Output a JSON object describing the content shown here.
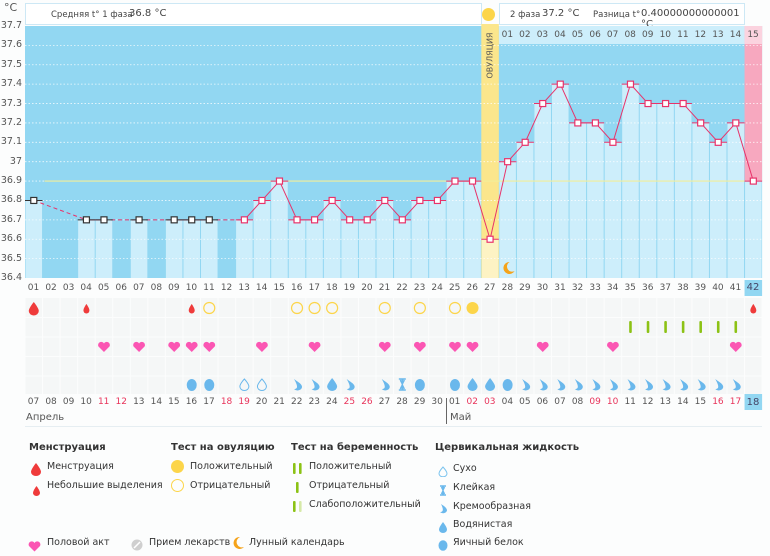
{
  "header": {
    "unit": "°C",
    "phase1_label": "Средняя t° 1 фаза",
    "phase1_value": "36.8 °C",
    "phase2_label": "2 фаза",
    "phase2_value": "37.2 °C",
    "diff_label": "Разница t°",
    "diff_value": "0.40000000000001 °C",
    "ovulation_label": "ОВУЛЯЦИЯ"
  },
  "colors": {
    "chart_bg": "#92d7f2",
    "bar": "#cdeefb",
    "line": "#e8336a",
    "ovulation": "#fbe68c",
    "period": "#f7a8bf",
    "coverline": "#f2ee9a",
    "highlight": "#92d7f2"
  },
  "chart_data": {
    "type": "line",
    "title": "",
    "xlabel": "",
    "ylabel": "°C",
    "ylim": [
      36.4,
      37.7
    ],
    "yticks": [
      "37.7",
      "37.6",
      "37.5",
      "37.4",
      "37.3",
      "37.2",
      "37.1",
      "37",
      "36.9",
      "36.8",
      "36.7",
      "36.6",
      "36.5",
      "36.4"
    ],
    "coverline": 36.9,
    "cycle_days": [
      "01",
      "02",
      "03",
      "04",
      "05",
      "06",
      "07",
      "08",
      "09",
      "10",
      "11",
      "12",
      "13",
      "14",
      "15",
      "16",
      "17",
      "18",
      "19",
      "20",
      "21",
      "22",
      "23",
      "24",
      "25",
      "26",
      "27",
      "28",
      "29",
      "30",
      "31",
      "32",
      "33",
      "34",
      "35",
      "36",
      "37",
      "38",
      "39",
      "40",
      "41",
      "42"
    ],
    "phase2_days": [
      "01",
      "02",
      "03",
      "04",
      "05",
      "06",
      "07",
      "08",
      "09",
      "10",
      "11",
      "12",
      "13",
      "14",
      "15"
    ],
    "temperatures": [
      36.8,
      null,
      null,
      36.7,
      36.7,
      null,
      36.7,
      null,
      36.7,
      36.7,
      36.7,
      null,
      36.7,
      36.8,
      36.9,
      36.7,
      36.7,
      36.8,
      36.7,
      36.7,
      36.8,
      36.7,
      36.8,
      36.8,
      36.9,
      36.9,
      36.6,
      37.0,
      37.1,
      37.3,
      37.4,
      37.2,
      37.2,
      37.1,
      37.4,
      37.3,
      37.3,
      37.3,
      37.2,
      37.1,
      37.2,
      36.9
    ],
    "ovulation_day": 27,
    "highlight_day": "42",
    "calendar_dates": [
      "07",
      "08",
      "09",
      "10",
      "11",
      "12",
      "13",
      "14",
      "15",
      "16",
      "17",
      "18",
      "19",
      "20",
      "21",
      "22",
      "23",
      "24",
      "25",
      "26",
      "27",
      "28",
      "29",
      "30",
      "01",
      "02",
      "03",
      "04",
      "05",
      "06",
      "07",
      "08",
      "09",
      "10",
      "11",
      "12",
      "13",
      "14",
      "15",
      "16",
      "17",
      "18"
    ],
    "weekend_indices": [
      4,
      5,
      11,
      12,
      18,
      19,
      25,
      26,
      32,
      33,
      39,
      40
    ],
    "months": [
      "Апрель",
      "Май"
    ],
    "menstruation": {
      "1": "heavy",
      "4": "light",
      "10": "light",
      "42": "light"
    },
    "ovulation_test": {
      "11": "negative",
      "16": "negative",
      "17": "negative",
      "18": "negative",
      "21": "negative",
      "23": "negative",
      "25": "negative",
      "26": "positive"
    },
    "pregnancy_test": {
      "35": "negative",
      "36": "negative",
      "37": "negative",
      "38": "negative",
      "39": "negative",
      "40": "negative",
      "41": "negative"
    },
    "intercourse": [
      5,
      7,
      9,
      10,
      11,
      14,
      17,
      21,
      23,
      25,
      26,
      30,
      34,
      41
    ],
    "cervical_fluid": {
      "10": "egg-white",
      "11": "egg-white",
      "13": "dry",
      "14": "dry",
      "16": "creamy",
      "17": "creamy",
      "18": "watery",
      "19": "creamy",
      "21": "creamy",
      "22": "sticky",
      "23": "egg-white",
      "25": "egg-white",
      "26": "watery",
      "27": "watery",
      "28": "egg-white",
      "29": "creamy",
      "30": "creamy",
      "31": "creamy",
      "32": "creamy",
      "33": "creamy",
      "34": "creamy",
      "35": "creamy",
      "36": "creamy",
      "37": "creamy",
      "38": "creamy",
      "39": "creamy",
      "40": "creamy",
      "41": "creamy"
    },
    "moon_day": 28
  },
  "legend": {
    "menstruation": {
      "title": "Менструация",
      "items": [
        "Менструация",
        "Небольшие выделения"
      ]
    },
    "ovulation_test": {
      "title": "Тест на овуляцию",
      "items": [
        "Положительный",
        "Отрицательный"
      ]
    },
    "pregnancy_test": {
      "title": "Тест на беременность",
      "items": [
        "Положительный",
        "Отрицательный",
        "Слабоположительный"
      ]
    },
    "cervical": {
      "title": "Цервикальная жидкость",
      "items": [
        "Сухо",
        "Клейкая",
        "Кремообразная",
        "Водянистая",
        "Яичный белок"
      ]
    },
    "other": [
      "Половой акт",
      "Прием лекарств",
      "Лунный календарь"
    ]
  }
}
